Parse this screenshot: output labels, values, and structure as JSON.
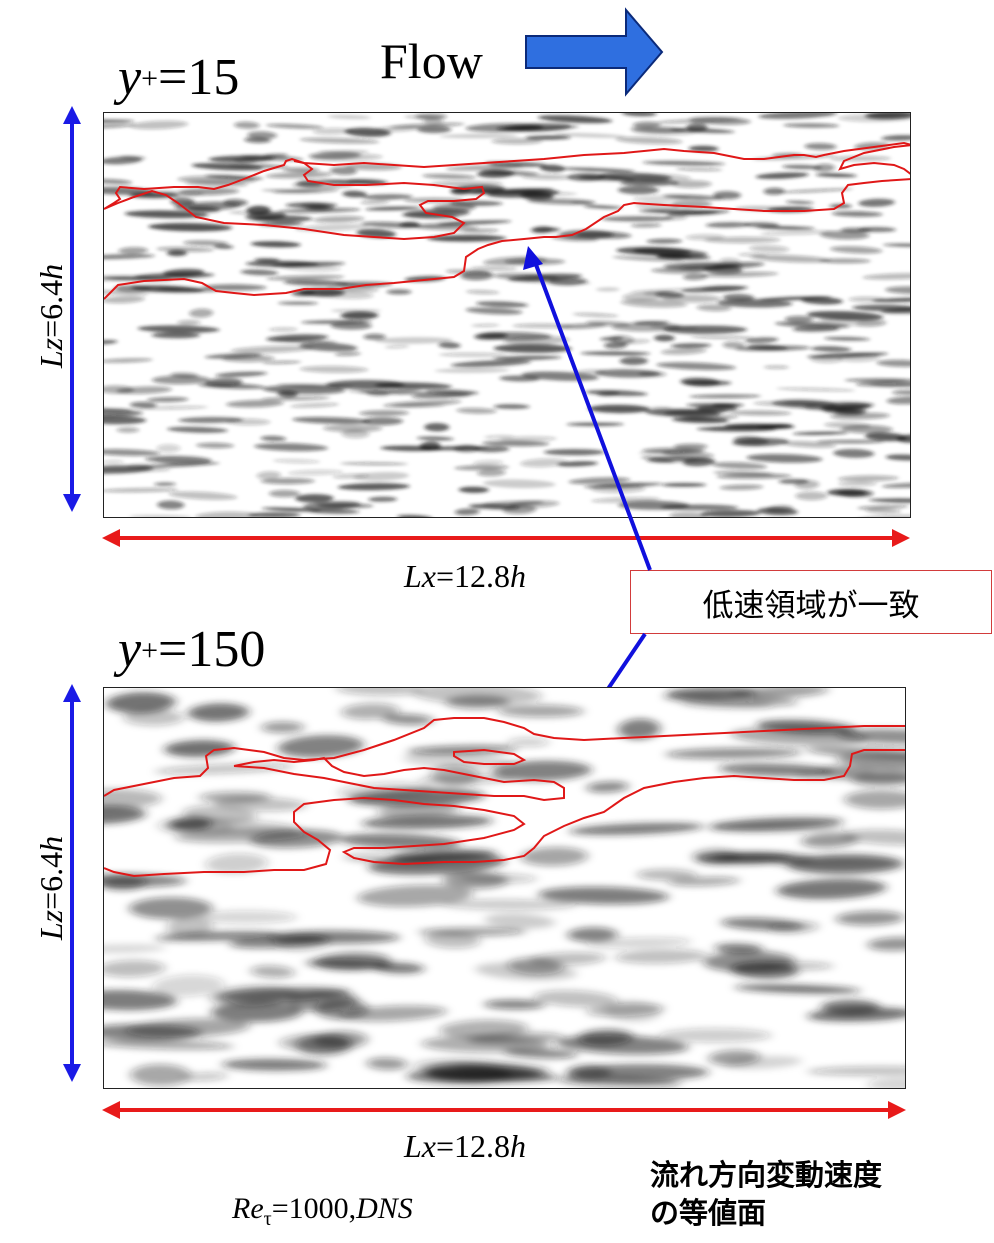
{
  "top_panel": {
    "title_var": "y",
    "title_sup": "+",
    "title_value": "=15",
    "lz_var": "Lz",
    "lz_value": "=6.4",
    "lz_unit": "h",
    "lx_var": "Lx",
    "lx_value": "=12.8",
    "lx_unit": "h"
  },
  "bottom_panel": {
    "title_var": "y",
    "title_sup": "+",
    "title_value": "=150",
    "lz_var": "Lz",
    "lz_value": "=6.4",
    "lz_unit": "h",
    "lx_var": "Lx",
    "lx_value": "=12.8",
    "lx_unit": "h"
  },
  "flow": {
    "label": "Flow"
  },
  "callout": {
    "text": "低速領域が一致"
  },
  "caption": {
    "line1": "流れ方向変動速度",
    "line2": "の等値面"
  },
  "footer": {
    "re_var": "Re",
    "re_sub": "τ",
    "re_value": "=1000,",
    "method": "DNS"
  },
  "colors": {
    "dimension_arrow_vertical": "#1a1ae6",
    "dimension_arrow_horizontal": "#e81a1a",
    "flow_arrow_fill": "#2f6fe0",
    "callout_arrow": "#1010dd",
    "contour": "#e01818",
    "callout_border": "#d23b3b"
  }
}
